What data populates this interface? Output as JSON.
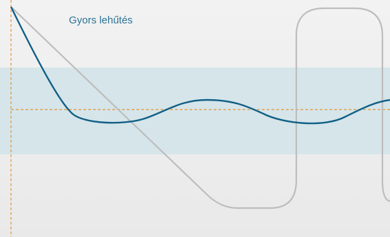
{
  "label": "Gyors lehűtés"
}
